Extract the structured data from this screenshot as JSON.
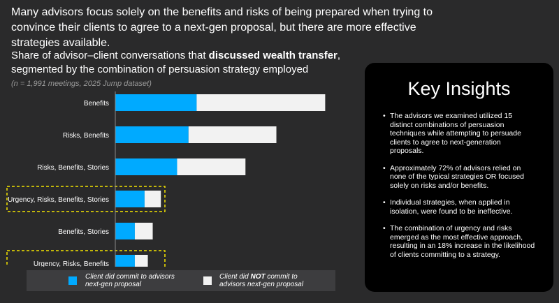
{
  "headline": "Many advisors focus solely on the benefits and risks of being prepared when trying to convince their clients to agree to a next-gen proposal, but there are more effective strategies available.",
  "chart_title": {
    "before": "Share of advisor–client conversations that ",
    "bold": "discussed wealth transfer",
    "after": ", segmented by the combination of persuasion strategy employed"
  },
  "subtitle": "(n = 1,991 meetings, 2025 Jump dataset)",
  "colors": {
    "committed": "#00aaff",
    "not_committed": "#f2f2f2",
    "highlight": "#f5e400"
  },
  "chart_data": {
    "type": "bar",
    "orientation": "horizontal",
    "stacked": true,
    "categories": [
      "Benefits",
      "Risks, Benefits",
      "Risks, Benefits, Stories",
      "Urgency, Risks, Benefits, Stories",
      "Benefits, Stories",
      "Urgency, Risks, Benefits"
    ],
    "series": [
      {
        "name": "Client did commit to advisors next-gen proposal",
        "values": [
          50,
          45,
          38,
          18,
          12,
          12
        ]
      },
      {
        "name": "Client did NOT commit to advisors next-gen proposal",
        "values": [
          79,
          54,
          42,
          10,
          11,
          8
        ]
      }
    ],
    "xlim": [
      0,
      140
    ],
    "xticks": [
      0,
      20,
      40,
      60,
      80,
      100,
      120,
      140
    ],
    "highlighted_categories": [
      "Urgency, Risks, Benefits, Stories",
      "Urgency, Risks, Benefits"
    ],
    "grid": false,
    "legend_position": "bottom"
  },
  "legend": [
    {
      "before": "Client did commit to advisors",
      "bold": "",
      "after": "next-gen proposal"
    },
    {
      "before": "Client did ",
      "bold": "NOT",
      "after": " commit to",
      "line2": "advisors next-gen proposal"
    }
  ],
  "insights": {
    "title": "Key Insights",
    "bullet": "•",
    "items": [
      "The advisors we examined utilized 15 distinct combinations of persuasion techniques while attempting to persuade clients to agree to next-generation proposals.",
      "Approximately 72% of advisors relied on none of the typical strategies OR focused solely on risks and/or benefits.",
      "Individual strategies, when applied in isolation, were found to be ineffective.",
      "The combination of urgency and risks emerged as the most effective approach, resulting in an 18% increase in the likelihood of clients committing to a strategy."
    ]
  }
}
